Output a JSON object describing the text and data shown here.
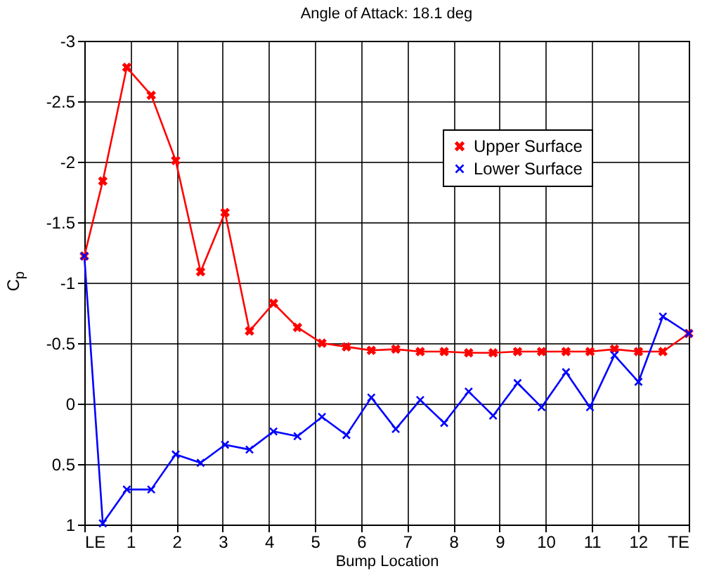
{
  "chart_data": {
    "type": "line",
    "title": "Angle of Attack:  18.1 deg",
    "xlabel": "Bump Location",
    "ylabel": "C$_{p}$",
    "xlim": [
      0,
      13.1
    ],
    "xticks": [
      {
        "value": 0,
        "label": "LE"
      },
      1,
      2,
      3,
      4,
      5,
      6,
      7,
      8,
      9,
      10,
      11,
      12,
      {
        "value": 13.1,
        "label": "TE"
      }
    ],
    "ylim": [
      1,
      -3
    ],
    "yticks": [
      -3,
      -2.5,
      -2,
      -1.5,
      -1,
      -0.5,
      0,
      0.5,
      1
    ],
    "x": [
      0,
      0.4,
      0.92,
      1.45,
      1.98,
      2.52,
      3.05,
      3.58,
      4.1,
      4.62,
      5.15,
      5.68,
      6.22,
      6.75,
      7.28,
      7.8,
      8.33,
      8.86,
      9.39,
      9.91,
      10.44,
      10.96,
      11.49,
      12.01,
      12.54,
      13.1
    ],
    "series": [
      {
        "name": "Upper Surface",
        "color": "#ff0000",
        "values": [
          -1.22,
          -1.84,
          -2.78,
          -2.55,
          -2.01,
          -1.09,
          -1.58,
          -0.6,
          -0.83,
          -0.63,
          -0.5,
          -0.47,
          -0.44,
          -0.45,
          -0.43,
          -0.43,
          -0.42,
          -0.42,
          -0.43,
          -0.43,
          -0.43,
          -0.43,
          -0.45,
          -0.43,
          -0.43,
          -0.58
        ]
      },
      {
        "name": "Lower Surface",
        "color": "#0000ff",
        "values": [
          -1.22,
          0.99,
          0.71,
          0.71,
          0.42,
          0.49,
          0.34,
          0.38,
          0.23,
          0.27,
          0.11,
          0.26,
          -0.05,
          0.21,
          -0.03,
          0.16,
          -0.1,
          0.1,
          -0.17,
          0.03,
          -0.26,
          0.03,
          -0.4,
          -0.18,
          -0.72,
          -0.58
        ]
      }
    ],
    "grid": true,
    "legend": "top right",
    "marker": "cross",
    "line_style": "solid"
  }
}
